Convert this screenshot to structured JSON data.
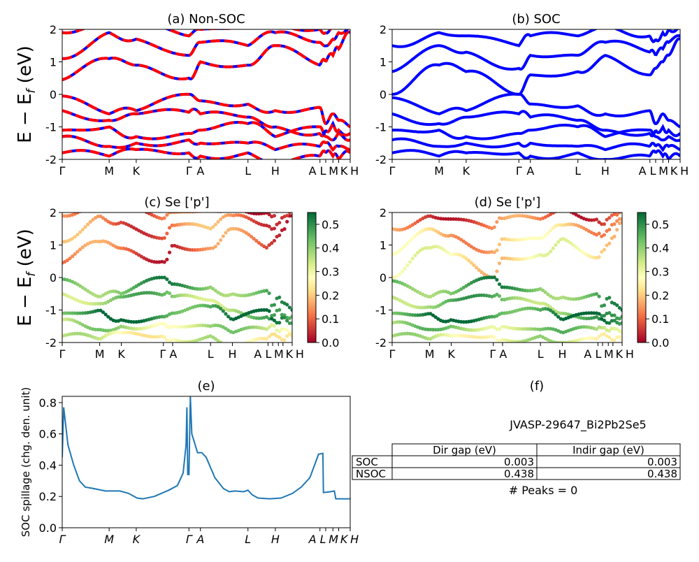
{
  "kpath_labels": [
    "Γ",
    "M",
    "K",
    "Γ",
    "A",
    "L",
    "H",
    "A",
    "L",
    "M",
    "K",
    "H"
  ],
  "chart_data": [
    {
      "panel": "a",
      "type": "line",
      "title": "(a) Non-SOC",
      "ylabel": "E − E_f (eV)",
      "ylim": [
        -2,
        2
      ],
      "yticks": [
        -2,
        -1,
        0,
        1,
        2
      ],
      "series_colors": [
        "#0000ff",
        "#ff0000"
      ],
      "bands": [
        [
          0.45,
          1.1,
          0.9,
          0.5,
          1.0,
          0.9,
          1.5,
          0.9,
          1.0,
          1.2,
          1.4,
          1.9
        ],
        [
          1.1,
          1.9,
          1.7,
          1.2,
          1.6,
          1.5,
          1.9,
          1.6,
          1.5,
          1.7,
          1.9,
          2.1
        ],
        [
          1.9,
          2.2,
          2.1,
          1.8,
          2.0,
          2.1,
          2.2,
          2.0,
          1.9,
          2.1,
          2.2,
          2.2
        ],
        [
          -0.05,
          -0.6,
          -0.5,
          0.0,
          -0.2,
          -0.3,
          -0.5,
          -0.4,
          -0.9,
          -0.6,
          -0.8,
          -1.0
        ],
        [
          -0.5,
          -0.8,
          -0.6,
          -0.55,
          -0.6,
          -0.7,
          -1.0,
          -1.2,
          -1.1,
          -0.9,
          -1.1,
          -1.2
        ],
        [
          -1.1,
          -1.0,
          -1.3,
          -1.2,
          -1.1,
          -0.9,
          -1.3,
          -1.0,
          -1.3,
          -1.4,
          -1.2,
          -1.4
        ],
        [
          -1.3,
          -1.6,
          -1.5,
          -1.4,
          -1.5,
          -1.5,
          -1.7,
          -1.6,
          -1.5,
          -1.7,
          -1.6,
          -1.7
        ],
        [
          -1.8,
          -1.9,
          -1.7,
          -1.8,
          -1.9,
          -1.8,
          -2.1,
          -1.9,
          -1.8,
          -1.9,
          -2.0,
          -1.8
        ]
      ]
    },
    {
      "panel": "b",
      "type": "line",
      "title": "(b) SOC",
      "ylim": [
        -2,
        2
      ],
      "yticks": [
        -2,
        -1,
        0,
        1,
        2
      ],
      "series_colors": [
        "#0000ff"
      ],
      "bands": [
        [
          0.0,
          0.9,
          0.7,
          0.0,
          0.6,
          0.7,
          1.2,
          0.6,
          0.8,
          1.0,
          1.2,
          1.7
        ],
        [
          0.7,
          1.5,
          1.3,
          0.8,
          1.2,
          1.2,
          1.6,
          1.3,
          1.2,
          1.4,
          1.6,
          1.8
        ],
        [
          1.5,
          1.9,
          1.8,
          1.5,
          1.8,
          1.8,
          2.1,
          1.8,
          1.7,
          1.9,
          2.0,
          2.1
        ],
        [
          -0.1,
          -0.6,
          -0.5,
          0.0,
          -0.3,
          -0.35,
          -0.6,
          -0.5,
          -0.9,
          -0.6,
          -0.8,
          -1.0
        ],
        [
          -0.6,
          -0.9,
          -0.7,
          -0.6,
          -0.7,
          -0.8,
          -1.1,
          -1.2,
          -1.1,
          -1.0,
          -1.1,
          -1.2
        ],
        [
          -1.1,
          -1.1,
          -1.3,
          -1.2,
          -1.1,
          -1.0,
          -1.3,
          -1.1,
          -1.3,
          -1.4,
          -1.3,
          -1.4
        ],
        [
          -1.4,
          -1.6,
          -1.5,
          -1.5,
          -1.5,
          -1.6,
          -1.7,
          -1.6,
          -1.6,
          -1.7,
          -1.6,
          -1.7
        ],
        [
          -1.8,
          -1.9,
          -1.8,
          -1.8,
          -1.9,
          -1.8,
          -2.0,
          -1.9,
          -1.8,
          -1.9,
          -2.0,
          -1.9
        ]
      ]
    },
    {
      "panel": "c",
      "type": "scatter",
      "title": "(c)  Se ['p']",
      "ylim": [
        -2,
        2
      ],
      "yticks": [
        -2,
        -1,
        0,
        1,
        2
      ],
      "colorbar": {
        "colormap": "RdYlGn",
        "range": [
          0,
          0.55
        ],
        "ticks": [
          0.0,
          0.1,
          0.2,
          0.3,
          0.4,
          0.5
        ]
      },
      "band_weights": [
        0.1,
        0.12,
        0.08,
        0.45,
        0.4,
        0.5,
        0.35,
        0.3
      ]
    },
    {
      "panel": "d",
      "type": "scatter",
      "title": "(d) Se ['p']",
      "ylim": [
        -2,
        2
      ],
      "yticks": [
        -2,
        -1,
        0,
        1,
        2
      ],
      "colorbar": {
        "colormap": "RdYlGn",
        "range": [
          0,
          0.55
        ],
        "ticks": [
          0.0,
          0.1,
          0.2,
          0.3,
          0.4,
          0.5
        ]
      },
      "band_weights": [
        0.25,
        0.2,
        0.1,
        0.45,
        0.42,
        0.5,
        0.38,
        0.32
      ]
    },
    {
      "panel": "e",
      "type": "line",
      "title": "(e)",
      "ylabel": "SOC spillage (chg. den. unit)",
      "ylim": [
        0,
        0.84
      ],
      "yticks": [
        0.0,
        0.2,
        0.4,
        0.6,
        0.8
      ],
      "color": "#1f77b4",
      "x": [
        0,
        0.005,
        0.02,
        0.04,
        0.06,
        0.08,
        0.11,
        0.15,
        0.2,
        0.23,
        0.26,
        0.28,
        0.32,
        0.37,
        0.4,
        0.42,
        0.43,
        0.433,
        0.436,
        0.44,
        0.445,
        0.45,
        0.47,
        0.485,
        0.5,
        0.53,
        0.56,
        0.58,
        0.6,
        0.63,
        0.645,
        0.66,
        0.68,
        0.72,
        0.76,
        0.8,
        0.83,
        0.86,
        0.88,
        0.89,
        0.905,
        0.907,
        0.93,
        0.945,
        0.95,
        1.0
      ],
      "y": [
        0.45,
        0.77,
        0.53,
        0.4,
        0.3,
        0.26,
        0.25,
        0.235,
        0.235,
        0.22,
        0.19,
        0.185,
        0.2,
        0.24,
        0.27,
        0.35,
        0.53,
        0.77,
        0.34,
        0.34,
        0.84,
        0.6,
        0.48,
        0.48,
        0.45,
        0.32,
        0.25,
        0.23,
        0.235,
        0.23,
        0.24,
        0.21,
        0.19,
        0.185,
        0.19,
        0.22,
        0.26,
        0.32,
        0.42,
        0.47,
        0.475,
        0.225,
        0.23,
        0.235,
        0.185,
        0.185
      ]
    }
  ],
  "panel_f": {
    "title": "(f)",
    "material": "JVASP-29647_Bi2Pb2Se5",
    "table": {
      "headers": [
        "",
        "Dir gap (eV)",
        "Indir gap (eV)"
      ],
      "rows": [
        [
          "SOC",
          "0.003",
          "0.003"
        ],
        [
          "NSOC",
          "0.438",
          "0.438"
        ]
      ]
    },
    "peaks": "# Peaks = 0"
  }
}
